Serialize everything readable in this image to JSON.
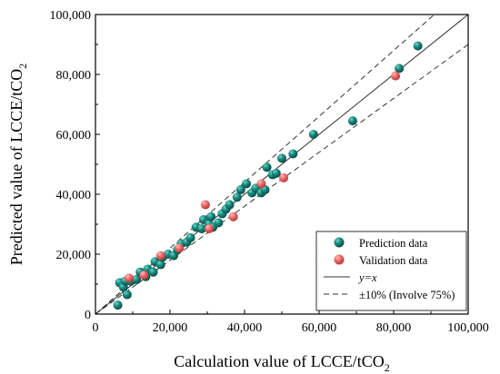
{
  "chart_data": {
    "type": "scatter",
    "title": "",
    "xlabel": "Calculation value of LCCE/tCO",
    "xlabel_sub": "2",
    "ylabel": "Predicted value of LCCE/tCO",
    "ylabel_sub": "2",
    "xlim": [
      0,
      100000
    ],
    "ylim": [
      0,
      100000
    ],
    "x_ticks": [
      0,
      20000,
      40000,
      60000,
      80000,
      100000
    ],
    "y_ticks": [
      0,
      20000,
      40000,
      60000,
      80000,
      100000
    ],
    "x_tick_labels": [
      "0",
      "20,000",
      "40,000",
      "60,000",
      "80,000",
      "100,000"
    ],
    "y_tick_labels": [
      "0",
      "20,000",
      "40,000",
      "60,000",
      "80,000",
      "100,000"
    ],
    "grid": false,
    "legend_position": "bottom-right",
    "series": [
      {
        "name": "Prediction data",
        "color": "#1a8c80",
        "points": [
          [
            6000,
            3000
          ],
          [
            6500,
            10500
          ],
          [
            7500,
            9000
          ],
          [
            8500,
            6500
          ],
          [
            8000,
            11000
          ],
          [
            9500,
            11000
          ],
          [
            11000,
            11500
          ],
          [
            12000,
            14000
          ],
          [
            13500,
            12500
          ],
          [
            14000,
            15000
          ],
          [
            15500,
            14000
          ],
          [
            16000,
            17500
          ],
          [
            17500,
            16500
          ],
          [
            18000,
            19000
          ],
          [
            19500,
            20000
          ],
          [
            21000,
            19500
          ],
          [
            22000,
            21500
          ],
          [
            23000,
            23500
          ],
          [
            24500,
            24000
          ],
          [
            25500,
            25500
          ],
          [
            27000,
            29000
          ],
          [
            28500,
            28500
          ],
          [
            29000,
            31500
          ],
          [
            30500,
            30000
          ],
          [
            31000,
            32500
          ],
          [
            31500,
            29000
          ],
          [
            33000,
            30500
          ],
          [
            34000,
            33500
          ],
          [
            35000,
            35000
          ],
          [
            36000,
            36500
          ],
          [
            38000,
            39000
          ],
          [
            39000,
            41500
          ],
          [
            40500,
            43500
          ],
          [
            42000,
            40500
          ],
          [
            43000,
            42000
          ],
          [
            44500,
            40500
          ],
          [
            45500,
            41500
          ],
          [
            46000,
            49000
          ],
          [
            47500,
            46500
          ],
          [
            48500,
            47000
          ],
          [
            50000,
            52000
          ],
          [
            53000,
            53500
          ],
          [
            58500,
            60000
          ],
          [
            69000,
            64500
          ],
          [
            81500,
            82000
          ],
          [
            86500,
            89500
          ]
        ]
      },
      {
        "name": "Validation data",
        "color": "#ef6b6b",
        "points": [
          [
            9000,
            12000
          ],
          [
            13000,
            13000
          ],
          [
            17500,
            19500
          ],
          [
            22500,
            22000
          ],
          [
            29500,
            36500
          ],
          [
            30500,
            28500
          ],
          [
            37000,
            32500
          ],
          [
            44500,
            43500
          ],
          [
            50500,
            45500
          ],
          [
            80500,
            79500
          ]
        ]
      }
    ],
    "lines": [
      {
        "name": "y=x",
        "style": "solid",
        "factor": 1.0
      },
      {
        "name": "±10% (Involve 75%)",
        "style": "dashed",
        "factor": 1.1
      },
      {
        "name": "",
        "style": "dashed",
        "factor": 0.9
      }
    ],
    "legend": {
      "entries": [
        "Prediction data",
        "Validation data",
        "y=x",
        "±10% (Involve 75%)"
      ]
    }
  }
}
